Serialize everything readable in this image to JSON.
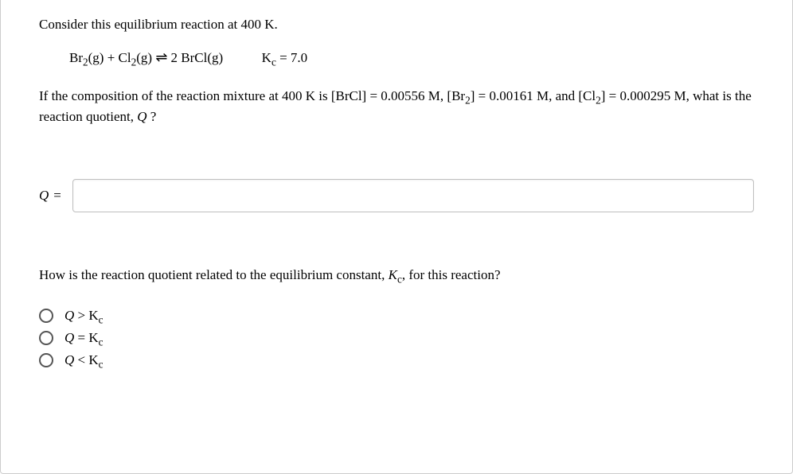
{
  "intro": "Consider this equilibrium reaction at 400 K.",
  "equation": {
    "lhs_html": "Br<span class=\"sub\">2</span>(g) + Cl<span class=\"sub\">2</span>(g)",
    "arrow": "⇌",
    "rhs_html": "2 BrCl(g)",
    "kc_html": "K<span class=\"sub\">c</span> = 7.0"
  },
  "composition_html": "If the composition of the reaction mixture at 400 K is [BrCl] = 0.00556 M, [Br<span class=\"sub\">2</span>] = 0.00161 M, and [Cl<span class=\"sub\">2</span>] = 0.000295 M, what is the reaction quotient, <span class=\"italic\">Q</span> ?",
  "answer_label": "Q",
  "answer_eq": "=",
  "answer_value": "",
  "question2_html": "How is the reaction quotient related to the equilibrium constant, <span class=\"italic\">K</span><span class=\"sub\">c</span>, for this reaction?",
  "options": [
    {
      "html": "<span class=\"italic\">Q</span> &gt; K<span class=\"sub\">c</span>"
    },
    {
      "html": "<span class=\"italic\">Q</span> = K<span class=\"sub\">c</span>"
    },
    {
      "html": "<span class=\"italic\">Q</span> &lt; K<span class=\"sub\">c</span>"
    }
  ],
  "colors": {
    "border": "#cccccc",
    "text": "#000000",
    "input_border": "#bfbfbf",
    "radio_border": "#555555",
    "background": "#ffffff"
  },
  "fonts": {
    "body_family": "Georgia, Times New Roman, serif",
    "body_size_pt": 13
  }
}
